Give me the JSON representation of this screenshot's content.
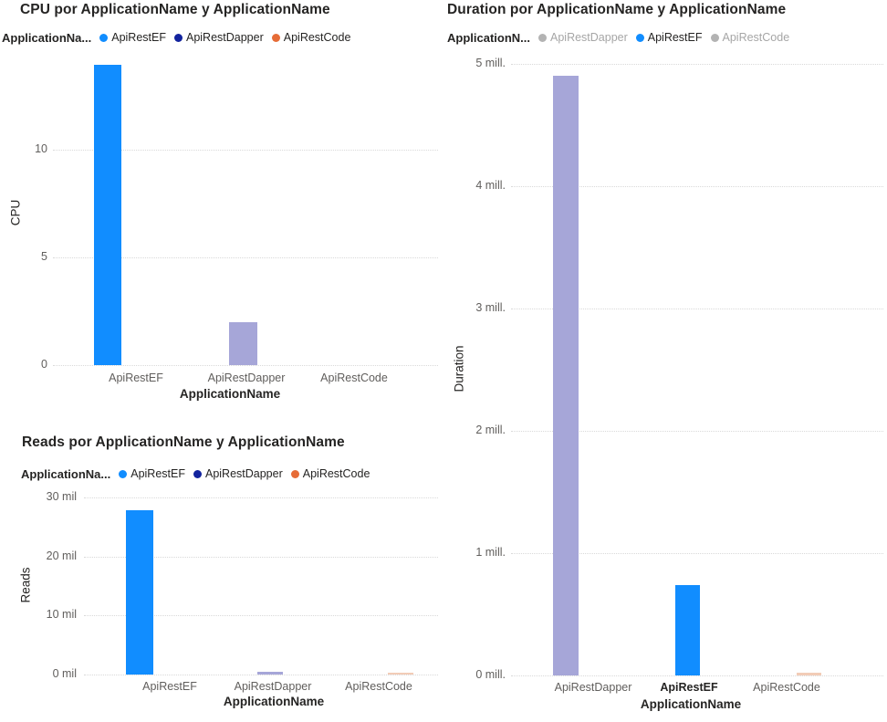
{
  "page": {
    "background": "#FFFFFF"
  },
  "colors": {
    "series_blue": "#118DFF",
    "series_navy": "#12239E",
    "series_orange": "#E66C37",
    "dimmed_navy_bar": "#A6A6D8",
    "dimmed_orange_bar": "#F2CCB7",
    "legend_dimmed_dot": "#B3B3B3",
    "legend_dimmed_text": "#A6A6A6",
    "text_dark": "#252423",
    "text_gray": "#605E5C",
    "gridline": "#D9D9D9"
  },
  "chart_data": [
    {
      "id": "cpu",
      "type": "bar",
      "title": "CPU por ApplicationName y ApplicationName",
      "legend_title": "ApplicationNa...",
      "legend_position": "top",
      "legend": [
        {
          "label": "ApiRestEF",
          "color": "#118DFF",
          "dimmed": false
        },
        {
          "label": "ApiRestDapper",
          "color": "#12239E",
          "dimmed": false
        },
        {
          "label": "ApiRestCode",
          "color": "#E66C37",
          "dimmed": false
        }
      ],
      "categories": [
        "ApiRestEF",
        "ApiRestDapper",
        "ApiRestCode"
      ],
      "values": [
        13.9,
        2,
        0
      ],
      "bar_colors": [
        "#118DFF",
        "#A6A6D8",
        "#F2CCB7"
      ],
      "xlabel": "ApplicationName",
      "ylabel": "CPU",
      "ylim": [
        0,
        14.3
      ],
      "yticks": [
        {
          "value": 0,
          "label": "0"
        },
        {
          "value": 5,
          "label": "5"
        },
        {
          "value": 10,
          "label": "10"
        }
      ],
      "grid": "dotted-horizontal",
      "emphasized_category": null
    },
    {
      "id": "reads",
      "type": "bar",
      "title": "Reads por ApplicationName y ApplicationName",
      "legend_title": "ApplicationNa...",
      "legend_position": "top",
      "legend": [
        {
          "label": "ApiRestEF",
          "color": "#118DFF",
          "dimmed": false
        },
        {
          "label": "ApiRestDapper",
          "color": "#12239E",
          "dimmed": false
        },
        {
          "label": "ApiRestCode",
          "color": "#E66C37",
          "dimmed": false
        }
      ],
      "categories": [
        "ApiRestEF",
        "ApiRestDapper",
        "ApiRestCode"
      ],
      "values": [
        27900,
        460,
        310
      ],
      "bar_colors": [
        "#118DFF",
        "#A6A6D8",
        "#F2CCB7"
      ],
      "xlabel": "ApplicationName",
      "ylabel": "Reads",
      "ylim": [
        0,
        31100
      ],
      "yticks": [
        {
          "value": 0,
          "label": "0 mil"
        },
        {
          "value": 10000,
          "label": "10 mil"
        },
        {
          "value": 20000,
          "label": "20 mil"
        },
        {
          "value": 30000,
          "label": "30 mil"
        }
      ],
      "grid": "dotted-horizontal",
      "emphasized_category": null
    },
    {
      "id": "duration",
      "type": "bar",
      "title": "Duration por ApplicationName y ApplicationName",
      "legend_title": "ApplicationN...",
      "legend_position": "top",
      "legend": [
        {
          "label": "ApiRestDapper",
          "color": "#12239E",
          "dimmed": true
        },
        {
          "label": "ApiRestEF",
          "color": "#118DFF",
          "dimmed": false
        },
        {
          "label": "ApiRestCode",
          "color": "#E66C37",
          "dimmed": true
        }
      ],
      "categories": [
        "ApiRestDapper",
        "ApiRestEF",
        "ApiRestCode"
      ],
      "values": [
        4900000,
        740000,
        20000
      ],
      "bar_colors": [
        "#A6A6D8",
        "#118DFF",
        "#F2CCB7"
      ],
      "xlabel": "ApplicationName",
      "ylabel": "Duration",
      "ylim": [
        0,
        5060000
      ],
      "yticks": [
        {
          "value": 0,
          "label": "0 mill."
        },
        {
          "value": 1000000,
          "label": "1 mill."
        },
        {
          "value": 2000000,
          "label": "2 mill."
        },
        {
          "value": 3000000,
          "label": "3 mill."
        },
        {
          "value": 4000000,
          "label": "4 mill."
        },
        {
          "value": 5000000,
          "label": "5 mill."
        }
      ],
      "grid": "dotted-horizontal",
      "emphasized_category": "ApiRestEF"
    }
  ]
}
